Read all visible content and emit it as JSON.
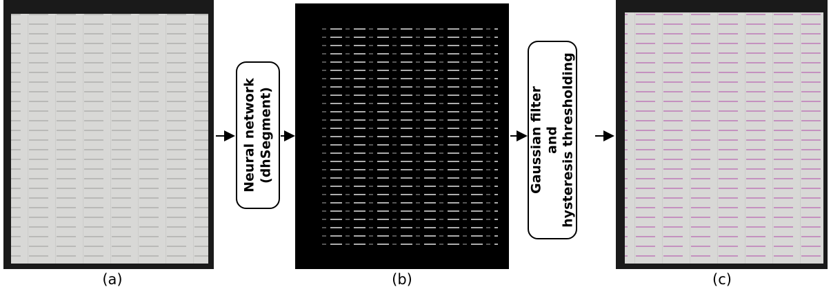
{
  "panels": [
    {
      "caption": "(a)"
    },
    {
      "caption": "(b)"
    },
    {
      "caption": "(c)"
    }
  ],
  "steps": [
    {
      "lines": [
        "Neural network",
        "(dhSegment)"
      ]
    },
    {
      "lines": [
        "Gaussian filter",
        "and",
        "hysteresis thresholding"
      ]
    }
  ]
}
